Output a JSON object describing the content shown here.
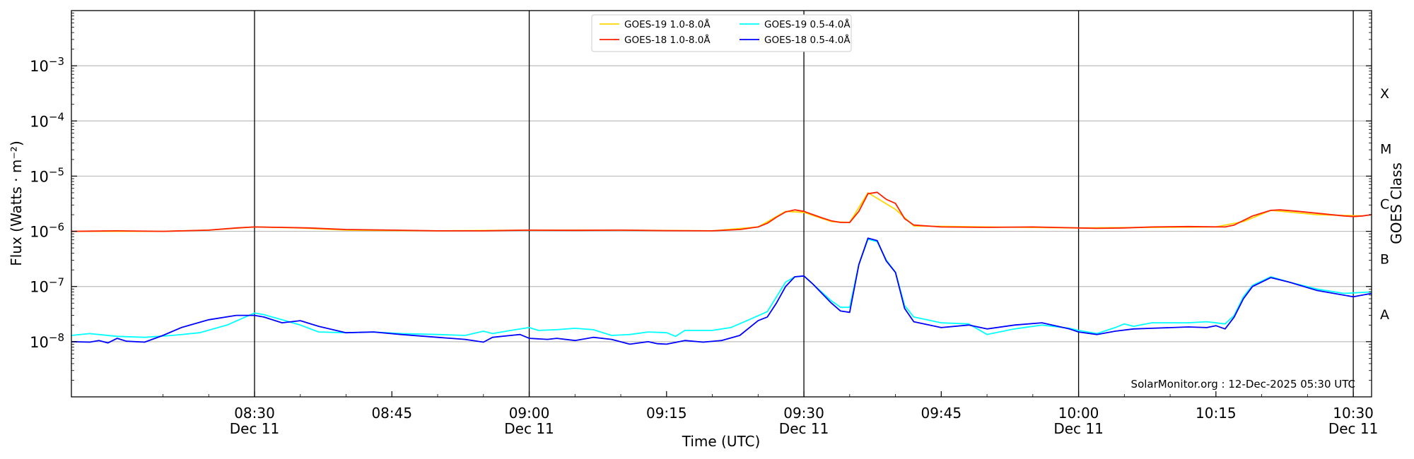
{
  "chart_data": {
    "type": "line",
    "title": "",
    "xlabel": "Time (UTC)",
    "ylabel": "Flux (Watts · m⁻²)",
    "y2label": "GOES Class",
    "yscale": "log",
    "ylim": [
      1e-09,
      0.01
    ],
    "xlim_minutes": [
      "08:10",
      "10:32"
    ],
    "grid": "horizontal",
    "legend_position": "top-center",
    "y_ticks": [
      {
        "value": 1e-08,
        "base": "10",
        "exp": "−8"
      },
      {
        "value": 1e-07,
        "base": "10",
        "exp": "−7"
      },
      {
        "value": 1e-06,
        "base": "10",
        "exp": "−6"
      },
      {
        "value": 1e-05,
        "base": "10",
        "exp": "−5"
      },
      {
        "value": 0.0001,
        "base": "10",
        "exp": "−4"
      },
      {
        "value": 0.001,
        "base": "10",
        "exp": "−3"
      }
    ],
    "x_ticks": [
      {
        "time": "08:30",
        "label": "08:30",
        "sublabel": "Dec 11",
        "vline": true
      },
      {
        "time": "08:45",
        "label": "08:45",
        "sublabel": "",
        "vline": false
      },
      {
        "time": "09:00",
        "label": "09:00",
        "sublabel": "Dec 11",
        "vline": true
      },
      {
        "time": "09:15",
        "label": "09:15",
        "sublabel": "",
        "vline": false
      },
      {
        "time": "09:30",
        "label": "09:30",
        "sublabel": "Dec 11",
        "vline": true
      },
      {
        "time": "09:45",
        "label": "09:45",
        "sublabel": "",
        "vline": false
      },
      {
        "time": "10:00",
        "label": "10:00",
        "sublabel": "Dec 11",
        "vline": true
      },
      {
        "time": "10:15",
        "label": "10:15",
        "sublabel": "",
        "vline": false
      },
      {
        "time": "10:30",
        "label": "10:30",
        "sublabel": "Dec 11",
        "vline": true
      }
    ],
    "goes_classes": [
      {
        "label": "A",
        "value": 3.16e-08
      },
      {
        "label": "B",
        "value": 3.16e-07
      },
      {
        "label": "C",
        "value": 3.16e-06
      },
      {
        "label": "M",
        "value": 3.16e-05
      },
      {
        "label": "X",
        "value": 0.000316
      }
    ],
    "annotation": "SolarMonitor.org : 12-Dec-2025 05:30 UTC",
    "series": [
      {
        "name": "GOES-19 1.0-8.0Å",
        "color": "#ffd700",
        "points": [
          [
            "08:10",
            1e-06
          ],
          [
            "08:20",
            1e-06
          ],
          [
            "08:25",
            1.05e-06
          ],
          [
            "08:30",
            1.2e-06
          ],
          [
            "08:35",
            1.15e-06
          ],
          [
            "08:40",
            1.05e-06
          ],
          [
            "08:50",
            1.02e-06
          ],
          [
            "09:00",
            1.05e-06
          ],
          [
            "09:10",
            1.05e-06
          ],
          [
            "09:20",
            1.02e-06
          ],
          [
            "09:25",
            1.2e-06
          ],
          [
            "09:28",
            2.3e-06
          ],
          [
            "09:30",
            2.2e-06
          ],
          [
            "09:33",
            1.5e-06
          ],
          [
            "09:35",
            1.45e-06
          ],
          [
            "09:37",
            5e-06
          ],
          [
            "09:40",
            2.5e-06
          ],
          [
            "09:42",
            1.25e-06
          ],
          [
            "09:50",
            1.2e-06
          ],
          [
            "10:00",
            1.15e-06
          ],
          [
            "10:15",
            1.2e-06
          ],
          [
            "10:18",
            1.5e-06
          ],
          [
            "10:21",
            2.4e-06
          ],
          [
            "10:26",
            2e-06
          ],
          [
            "10:31",
            1.9e-06
          ]
        ]
      },
      {
        "name": "GOES-18 1.0-8.0Å",
        "color": "#ff2000",
        "points": [
          [
            "08:10",
            1e-06
          ],
          [
            "08:15",
            1.02e-06
          ],
          [
            "08:20",
            1e-06
          ],
          [
            "08:25",
            1.05e-06
          ],
          [
            "08:28",
            1.15e-06
          ],
          [
            "08:30",
            1.2e-06
          ],
          [
            "08:33",
            1.18e-06
          ],
          [
            "08:36",
            1.15e-06
          ],
          [
            "08:40",
            1.08e-06
          ],
          [
            "08:45",
            1.05e-06
          ],
          [
            "08:50",
            1.02e-06
          ],
          [
            "08:55",
            1.02e-06
          ],
          [
            "09:00",
            1.05e-06
          ],
          [
            "09:05",
            1.04e-06
          ],
          [
            "09:10",
            1.05e-06
          ],
          [
            "09:15",
            1.03e-06
          ],
          [
            "09:20",
            1.02e-06
          ],
          [
            "09:23",
            1.08e-06
          ],
          [
            "09:25",
            1.2e-06
          ],
          [
            "09:26",
            1.4e-06
          ],
          [
            "09:27",
            1.8e-06
          ],
          [
            "09:28",
            2.25e-06
          ],
          [
            "09:29",
            2.45e-06
          ],
          [
            "09:30",
            2.3e-06
          ],
          [
            "09:31",
            2e-06
          ],
          [
            "09:32",
            1.75e-06
          ],
          [
            "09:33",
            1.55e-06
          ],
          [
            "09:34",
            1.45e-06
          ],
          [
            "09:35",
            1.45e-06
          ],
          [
            "09:36",
            2.3e-06
          ],
          [
            "09:37",
            4.8e-06
          ],
          [
            "09:38",
            5.1e-06
          ],
          [
            "09:39",
            3.8e-06
          ],
          [
            "09:40",
            3.2e-06
          ],
          [
            "09:41",
            1.7e-06
          ],
          [
            "09:42",
            1.3e-06
          ],
          [
            "09:45",
            1.2e-06
          ],
          [
            "09:50",
            1.18e-06
          ],
          [
            "09:55",
            1.2e-06
          ],
          [
            "10:00",
            1.15e-06
          ],
          [
            "10:02",
            1.13e-06
          ],
          [
            "10:05",
            1.15e-06
          ],
          [
            "10:08",
            1.2e-06
          ],
          [
            "10:12",
            1.22e-06
          ],
          [
            "10:16",
            1.2e-06
          ],
          [
            "10:17",
            1.3e-06
          ],
          [
            "10:19",
            1.9e-06
          ],
          [
            "10:21",
            2.4e-06
          ],
          [
            "10:22",
            2.45e-06
          ],
          [
            "10:24",
            2.3e-06
          ],
          [
            "10:27",
            2.05e-06
          ],
          [
            "10:29",
            1.9e-06
          ],
          [
            "10:30",
            1.85e-06
          ],
          [
            "10:31",
            1.9e-06
          ],
          [
            "10:32",
            2e-06
          ]
        ]
      },
      {
        "name": "GOES-19 0.5-4.0Å",
        "color": "#00ffff",
        "points": [
          [
            "08:10",
            1.3e-08
          ],
          [
            "08:12",
            1.4e-08
          ],
          [
            "08:15",
            1.25e-08
          ],
          [
            "08:18",
            1.2e-08
          ],
          [
            "08:21",
            1.3e-08
          ],
          [
            "08:24",
            1.45e-08
          ],
          [
            "08:27",
            2e-08
          ],
          [
            "08:29",
            2.8e-08
          ],
          [
            "08:30",
            3.3e-08
          ],
          [
            "08:31",
            3.1e-08
          ],
          [
            "08:33",
            2.5e-08
          ],
          [
            "08:35",
            2e-08
          ],
          [
            "08:37",
            1.5e-08
          ],
          [
            "08:40",
            1.45e-08
          ],
          [
            "08:43",
            1.5e-08
          ],
          [
            "08:46",
            1.4e-08
          ],
          [
            "08:50",
            1.35e-08
          ],
          [
            "08:53",
            1.3e-08
          ],
          [
            "08:55",
            1.55e-08
          ],
          [
            "08:56",
            1.4e-08
          ],
          [
            "08:58",
            1.6e-08
          ],
          [
            "09:00",
            1.8e-08
          ],
          [
            "09:01",
            1.6e-08
          ],
          [
            "09:03",
            1.65e-08
          ],
          [
            "09:05",
            1.75e-08
          ],
          [
            "09:07",
            1.65e-08
          ],
          [
            "09:09",
            1.3e-08
          ],
          [
            "09:11",
            1.35e-08
          ],
          [
            "09:13",
            1.5e-08
          ],
          [
            "09:15",
            1.45e-08
          ],
          [
            "09:16",
            1.25e-08
          ],
          [
            "09:17",
            1.6e-08
          ],
          [
            "09:20",
            1.6e-08
          ],
          [
            "09:22",
            1.8e-08
          ],
          [
            "09:24",
            2.5e-08
          ],
          [
            "09:26",
            3.5e-08
          ],
          [
            "09:28",
            1.2e-07
          ],
          [
            "09:29",
            1.5e-07
          ],
          [
            "09:30",
            1.55e-07
          ],
          [
            "09:31",
            1.1e-07
          ],
          [
            "09:33",
            5.5e-08
          ],
          [
            "09:34",
            4.2e-08
          ],
          [
            "09:35",
            4.2e-08
          ],
          [
            "09:36",
            2.5e-07
          ],
          [
            "09:37",
            7.2e-07
          ],
          [
            "09:38",
            6.5e-07
          ],
          [
            "09:39",
            3e-07
          ],
          [
            "09:40",
            1.8e-07
          ],
          [
            "09:41",
            4.5e-08
          ],
          [
            "09:42",
            2.8e-08
          ],
          [
            "09:45",
            2.2e-08
          ],
          [
            "09:48",
            2.1e-08
          ],
          [
            "09:50",
            1.35e-08
          ],
          [
            "09:53",
            1.7e-08
          ],
          [
            "09:56",
            2e-08
          ],
          [
            "09:59",
            1.75e-08
          ],
          [
            "10:00",
            1.6e-08
          ],
          [
            "10:02",
            1.4e-08
          ],
          [
            "10:04",
            1.8e-08
          ],
          [
            "10:05",
            2.1e-08
          ],
          [
            "10:06",
            1.9e-08
          ],
          [
            "10:08",
            2.2e-08
          ],
          [
            "10:12",
            2.2e-08
          ],
          [
            "10:14",
            2.3e-08
          ],
          [
            "10:16",
            2.1e-08
          ],
          [
            "10:17",
            3e-08
          ],
          [
            "10:18",
            6.5e-08
          ],
          [
            "10:19",
            1.05e-07
          ],
          [
            "10:21",
            1.5e-07
          ],
          [
            "10:23",
            1.2e-07
          ],
          [
            "10:26",
            9e-08
          ],
          [
            "10:29",
            7.5e-08
          ],
          [
            "10:31",
            7.8e-08
          ],
          [
            "10:32",
            8e-08
          ]
        ]
      },
      {
        "name": "GOES-18 0.5-4.0Å",
        "color": "#0000ff",
        "points": [
          [
            "08:10",
            1e-08
          ],
          [
            "08:12",
            9.8e-09
          ],
          [
            "08:13",
            1.05e-08
          ],
          [
            "08:14",
            9.5e-09
          ],
          [
            "08:15",
            1.15e-08
          ],
          [
            "08:16",
            1.02e-08
          ],
          [
            "08:18",
            9.8e-09
          ],
          [
            "08:20",
            1.3e-08
          ],
          [
            "08:22",
            1.8e-08
          ],
          [
            "08:25",
            2.5e-08
          ],
          [
            "08:28",
            3e-08
          ],
          [
            "08:30",
            3e-08
          ],
          [
            "08:31",
            2.8e-08
          ],
          [
            "08:33",
            2.2e-08
          ],
          [
            "08:35",
            2.4e-08
          ],
          [
            "08:37",
            1.9e-08
          ],
          [
            "08:40",
            1.45e-08
          ],
          [
            "08:43",
            1.5e-08
          ],
          [
            "08:46",
            1.35e-08
          ],
          [
            "08:50",
            1.2e-08
          ],
          [
            "08:53",
            1.1e-08
          ],
          [
            "08:55",
            9.8e-09
          ],
          [
            "08:56",
            1.2e-08
          ],
          [
            "08:58",
            1.3e-08
          ],
          [
            "08:59",
            1.35e-08
          ],
          [
            "09:00",
            1.15e-08
          ],
          [
            "09:02",
            1.1e-08
          ],
          [
            "09:03",
            1.15e-08
          ],
          [
            "09:05",
            1.05e-08
          ],
          [
            "09:07",
            1.2e-08
          ],
          [
            "09:09",
            1.1e-08
          ],
          [
            "09:11",
            9e-09
          ],
          [
            "09:12",
            9.5e-09
          ],
          [
            "09:13",
            1e-08
          ],
          [
            "09:14",
            9.2e-09
          ],
          [
            "09:15",
            9e-09
          ],
          [
            "09:17",
            1.05e-08
          ],
          [
            "09:19",
            9.8e-09
          ],
          [
            "09:21",
            1.05e-08
          ],
          [
            "09:23",
            1.3e-08
          ],
          [
            "09:25",
            2.4e-08
          ],
          [
            "09:26",
            2.8e-08
          ],
          [
            "09:27",
            5e-08
          ],
          [
            "09:28",
            1e-07
          ],
          [
            "09:29",
            1.5e-07
          ],
          [
            "09:30",
            1.55e-07
          ],
          [
            "09:31",
            1.1e-07
          ],
          [
            "09:33",
            5e-08
          ],
          [
            "09:34",
            3.6e-08
          ],
          [
            "09:35",
            3.4e-08
          ],
          [
            "09:36",
            2.5e-07
          ],
          [
            "09:37",
            7.5e-07
          ],
          [
            "09:38",
            6.8e-07
          ],
          [
            "09:39",
            2.9e-07
          ],
          [
            "09:40",
            1.8e-07
          ],
          [
            "09:41",
            4e-08
          ],
          [
            "09:42",
            2.3e-08
          ],
          [
            "09:45",
            1.8e-08
          ],
          [
            "09:48",
            2e-08
          ],
          [
            "09:50",
            1.7e-08
          ],
          [
            "09:53",
            2e-08
          ],
          [
            "09:56",
            2.2e-08
          ],
          [
            "09:59",
            1.7e-08
          ],
          [
            "10:00",
            1.5e-08
          ],
          [
            "10:02",
            1.35e-08
          ],
          [
            "10:04",
            1.55e-08
          ],
          [
            "10:06",
            1.7e-08
          ],
          [
            "10:08",
            1.75e-08
          ],
          [
            "10:12",
            1.85e-08
          ],
          [
            "10:14",
            1.8e-08
          ],
          [
            "10:15",
            1.95e-08
          ],
          [
            "10:16",
            1.7e-08
          ],
          [
            "10:17",
            2.8e-08
          ],
          [
            "10:18",
            6e-08
          ],
          [
            "10:19",
            1e-07
          ],
          [
            "10:21",
            1.45e-07
          ],
          [
            "10:23",
            1.2e-07
          ],
          [
            "10:26",
            8.5e-08
          ],
          [
            "10:30",
            6.5e-08
          ],
          [
            "10:32",
            7.5e-08
          ]
        ]
      }
    ]
  }
}
